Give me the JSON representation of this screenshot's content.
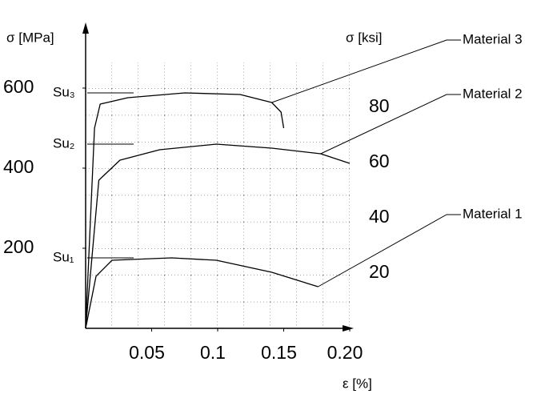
{
  "chart_data": {
    "type": "line",
    "y_label": "σ  [MPa]",
    "y2_label": "σ  [ksi]",
    "x_label": "ε [%]",
    "xlim": [
      0,
      0.2
    ],
    "ylim": [
      0,
      760
    ],
    "y2lim": [
      0,
      110.2
    ],
    "xticks": [
      0.05,
      0.1,
      0.15,
      {
        "value": 0.2,
        "label": "0.20"
      }
    ],
    "yticks": [
      200,
      400,
      600
    ],
    "y2ticks": [
      20,
      40,
      60,
      80
    ],
    "grid": true,
    "series": [
      {
        "name": "Material 1",
        "color": "#000000",
        "x": [
          0,
          0.0079,
          0.02,
          0.065,
          0.099,
          0.141,
          0.176
        ],
        "values": [
          0,
          130,
          170,
          176,
          170,
          140,
          104
        ]
      },
      {
        "name": "Material 2",
        "color": "#000000",
        "x": [
          0,
          0.01,
          0.026,
          0.056,
          0.099,
          0.141,
          0.178,
          0.2
        ],
        "values": [
          0,
          370,
          420,
          446,
          460,
          450,
          436,
          412
        ]
      },
      {
        "name": "Material 3",
        "color": "#000000",
        "x": [
          0,
          0.0067,
          0.011,
          0.032,
          0.075,
          0.117,
          0.141,
          0.148,
          0.15
        ],
        "values": [
          0,
          500,
          560,
          576,
          588,
          584,
          564,
          540,
          500
        ]
      }
    ],
    "annotations": [
      {
        "text": "Su₁",
        "value": 176
      },
      {
        "text": "Su₂",
        "value": 460
      },
      {
        "text": "Su₃",
        "value": 588
      }
    ]
  }
}
